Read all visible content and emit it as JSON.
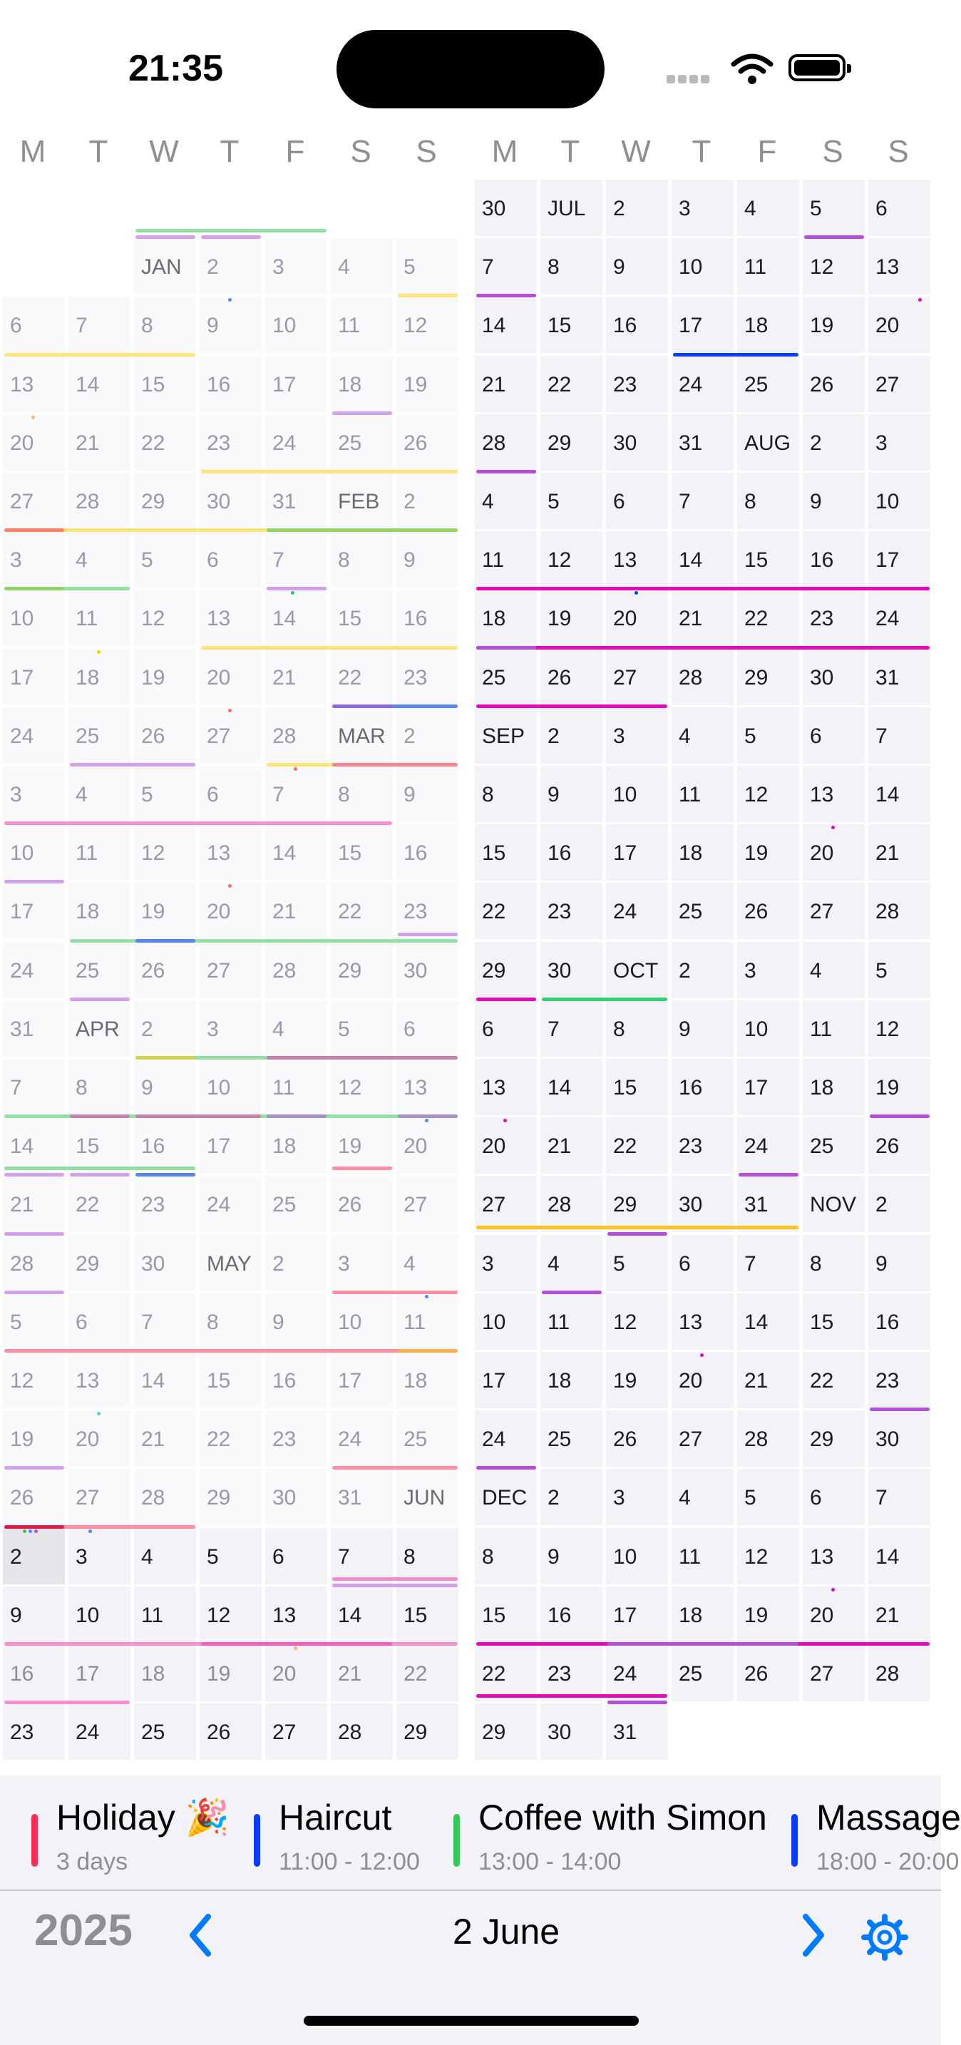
{
  "status": {
    "time": "21:35"
  },
  "weekdays": [
    "M",
    "T",
    "W",
    "T",
    "F",
    "S",
    "S"
  ],
  "calendar": {
    "left": {
      "rows": [
        [
          "",
          "",
          "",
          "",
          "",
          "",
          ""
        ],
        [
          "",
          "",
          "JAN",
          "2",
          "3",
          "4",
          "5"
        ],
        [
          "6",
          "7",
          "8",
          "9",
          "10",
          "11",
          "12"
        ],
        [
          "13",
          "14",
          "15",
          "16",
          "17",
          "18",
          "19"
        ],
        [
          "20",
          "21",
          "22",
          "23",
          "24",
          "25",
          "26"
        ],
        [
          "27",
          "28",
          "29",
          "30",
          "31",
          "FEB",
          "2"
        ],
        [
          "3",
          "4",
          "5",
          "6",
          "7",
          "8",
          "9"
        ],
        [
          "10",
          "11",
          "12",
          "13",
          "14",
          "15",
          "16"
        ],
        [
          "17",
          "18",
          "19",
          "20",
          "21",
          "22",
          "23"
        ],
        [
          "24",
          "25",
          "26",
          "27",
          "28",
          "MAR",
          "2"
        ],
        [
          "3",
          "4",
          "5",
          "6",
          "7",
          "8",
          "9"
        ],
        [
          "10",
          "11",
          "12",
          "13",
          "14",
          "15",
          "16"
        ],
        [
          "17",
          "18",
          "19",
          "20",
          "21",
          "22",
          "23"
        ],
        [
          "24",
          "25",
          "26",
          "27",
          "28",
          "29",
          "30"
        ],
        [
          "31",
          "APR",
          "2",
          "3",
          "4",
          "5",
          "6"
        ],
        [
          "7",
          "8",
          "9",
          "10",
          "11",
          "12",
          "13"
        ],
        [
          "14",
          "15",
          "16",
          "17",
          "18",
          "19",
          "20"
        ],
        [
          "21",
          "22",
          "23",
          "24",
          "25",
          "26",
          "27"
        ],
        [
          "28",
          "29",
          "30",
          "MAY",
          "2",
          "3",
          "4"
        ],
        [
          "5",
          "6",
          "7",
          "8",
          "9",
          "10",
          "11"
        ],
        [
          "12",
          "13",
          "14",
          "15",
          "16",
          "17",
          "18"
        ],
        [
          "19",
          "20",
          "21",
          "22",
          "23",
          "24",
          "25"
        ],
        [
          "26",
          "27",
          "28",
          "29",
          "30",
          "31",
          "JUN"
        ],
        [
          "2",
          "3",
          "4",
          "5",
          "6",
          "7",
          "8"
        ],
        [
          "9",
          "10",
          "11",
          "12",
          "13",
          "14",
          "15"
        ],
        [
          "16",
          "17",
          "18",
          "19",
          "20",
          "21",
          "22"
        ],
        [
          "23",
          "24",
          "25",
          "26",
          "27",
          "28",
          "29"
        ]
      ]
    },
    "right": {
      "rows": [
        [
          "30",
          "JUL",
          "2",
          "3",
          "4",
          "5",
          "6"
        ],
        [
          "7",
          "8",
          "9",
          "10",
          "11",
          "12",
          "13"
        ],
        [
          "14",
          "15",
          "16",
          "17",
          "18",
          "19",
          "20"
        ],
        [
          "21",
          "22",
          "23",
          "24",
          "25",
          "26",
          "27"
        ],
        [
          "28",
          "29",
          "30",
          "31",
          "AUG",
          "2",
          "3"
        ],
        [
          "4",
          "5",
          "6",
          "7",
          "8",
          "9",
          "10"
        ],
        [
          "11",
          "12",
          "13",
          "14",
          "15",
          "16",
          "17"
        ],
        [
          "18",
          "19",
          "20",
          "21",
          "22",
          "23",
          "24"
        ],
        [
          "25",
          "26",
          "27",
          "28",
          "29",
          "30",
          "31"
        ],
        [
          "SEP",
          "2",
          "3",
          "4",
          "5",
          "6",
          "7"
        ],
        [
          "8",
          "9",
          "10",
          "11",
          "12",
          "13",
          "14"
        ],
        [
          "15",
          "16",
          "17",
          "18",
          "19",
          "20",
          "21"
        ],
        [
          "22",
          "23",
          "24",
          "25",
          "26",
          "27",
          "28"
        ],
        [
          "29",
          "30",
          "OCT",
          "2",
          "3",
          "4",
          "5"
        ],
        [
          "6",
          "7",
          "8",
          "9",
          "10",
          "11",
          "12"
        ],
        [
          "13",
          "14",
          "15",
          "16",
          "17",
          "18",
          "19"
        ],
        [
          "20",
          "21",
          "22",
          "23",
          "24",
          "25",
          "26"
        ],
        [
          "27",
          "28",
          "29",
          "30",
          "31",
          "NOV",
          "2"
        ],
        [
          "3",
          "4",
          "5",
          "6",
          "7",
          "8",
          "9"
        ],
        [
          "10",
          "11",
          "12",
          "13",
          "14",
          "15",
          "16"
        ],
        [
          "17",
          "18",
          "19",
          "20",
          "21",
          "22",
          "23"
        ],
        [
          "24",
          "25",
          "26",
          "27",
          "28",
          "29",
          "30"
        ],
        [
          "DEC",
          "2",
          "3",
          "4",
          "5",
          "6",
          "7"
        ],
        [
          "8",
          "9",
          "10",
          "11",
          "12",
          "13",
          "14"
        ],
        [
          "15",
          "16",
          "17",
          "18",
          "19",
          "20",
          "21"
        ],
        [
          "22",
          "23",
          "24",
          "25",
          "26",
          "27",
          "28"
        ],
        [
          "29",
          "30",
          "31",
          "",
          "",
          "",
          ""
        ]
      ]
    },
    "selected": "2 June"
  },
  "colors": {
    "red": "#ff2d55",
    "blue": "#0a3cff",
    "green": "#34c759",
    "yellow": "#ffcc00",
    "pink": "#f032a8",
    "purple": "#b34fd9",
    "magenta": "#e30bb7",
    "accent": "#007aff"
  },
  "events": [
    {
      "title": "Holiday 🎉",
      "subtitle": "3 days",
      "color": "#ff2d55"
    },
    {
      "title": "Haircut",
      "subtitle": "11:00 - 12:00",
      "color": "#0a3cff"
    },
    {
      "title": "Coffee with Simon",
      "subtitle": "13:00 - 14:00",
      "color": "#34c759"
    },
    {
      "title": "Massage",
      "subtitle": "18:00 - 20:00",
      "color": "#0a3cff"
    }
  ],
  "footer": {
    "year": "2025",
    "date": "2 June",
    "icons": {
      "prev": "chevron-left-icon",
      "next": "chevron-right-icon",
      "settings": "gear-icon"
    }
  }
}
